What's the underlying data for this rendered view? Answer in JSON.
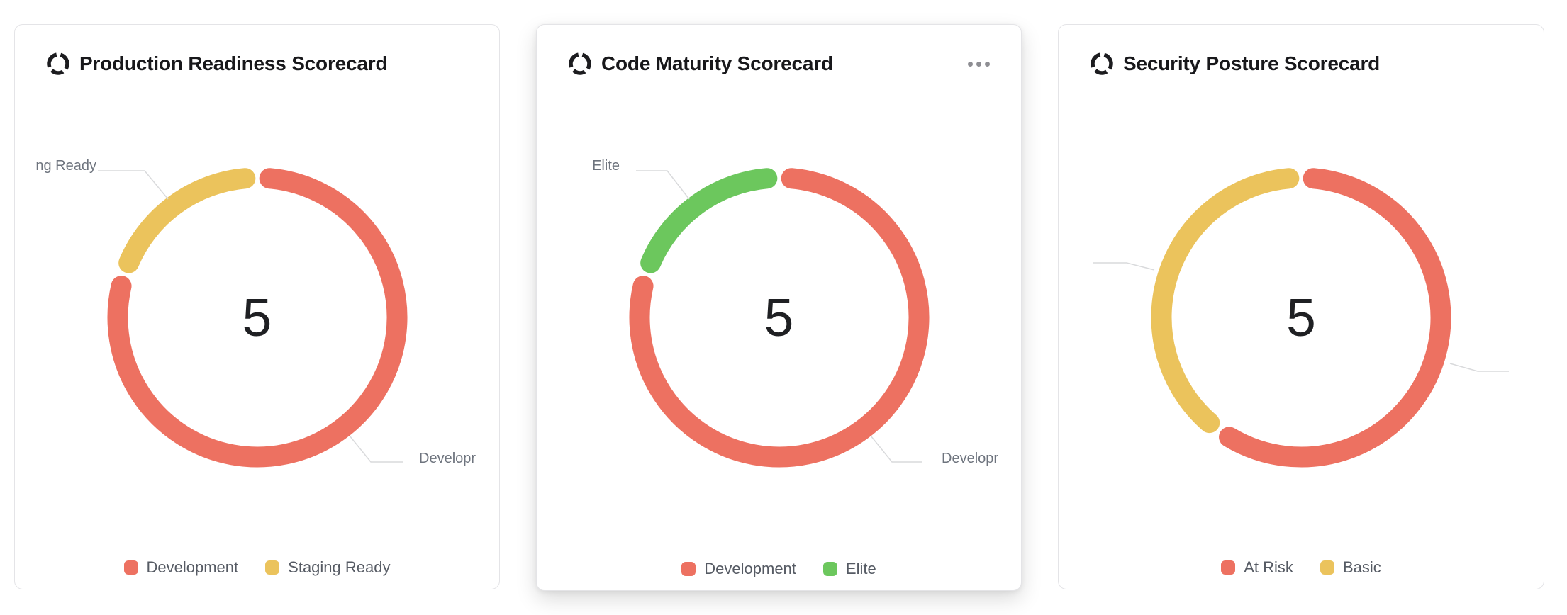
{
  "cards": [
    {
      "title": "Production Readiness Scorecard",
      "icon": "donut-chart-icon",
      "center_value": "5",
      "callouts": {
        "top_left": "ng Ready",
        "bottom_right": "Developr"
      },
      "legend": [
        {
          "label": "Development"
        },
        {
          "label": "Staging Ready"
        }
      ]
    },
    {
      "title": "Code Maturity Scorecard",
      "icon": "donut-chart-icon",
      "menu": "more-options-ellipsis",
      "center_value": "5",
      "callouts": {
        "top_left": "Elite",
        "bottom_right": "Developr"
      },
      "legend": [
        {
          "label": "Development"
        },
        {
          "label": "Elite"
        }
      ]
    },
    {
      "title": "Security Posture Scorecard",
      "icon": "donut-chart-icon",
      "center_value": "5",
      "callouts": {},
      "legend": [
        {
          "label": "At Risk"
        },
        {
          "label": "Basic"
        }
      ]
    }
  ],
  "colors": {
    "red": "#ED7161",
    "yellow": "#EBC35C",
    "green": "#6CC75D",
    "connector": "#D9DADC",
    "title": "#18181B",
    "callout_text": "#6E747E",
    "legend_text": "#565B64",
    "card_border": "#E4E4E7"
  },
  "chart_data": [
    {
      "type": "pie",
      "subtype": "donut",
      "title": "Production Readiness Scorecard",
      "center_label": "5",
      "total": 5,
      "series": [
        {
          "name": "Development",
          "value": 4,
          "color": "#ED7161"
        },
        {
          "name": "Staging Ready",
          "value": 1,
          "color": "#EBC35C"
        }
      ],
      "legend": [
        "Development",
        "Staging Ready"
      ],
      "legend_position": "bottom",
      "start_angle": "top",
      "direction": "clockwise"
    },
    {
      "type": "pie",
      "subtype": "donut",
      "title": "Code Maturity Scorecard",
      "center_label": "5",
      "total": 5,
      "series": [
        {
          "name": "Development",
          "value": 4,
          "color": "#ED7161"
        },
        {
          "name": "Elite",
          "value": 1,
          "color": "#6CC75D"
        }
      ],
      "legend": [
        "Development",
        "Elite"
      ],
      "legend_position": "bottom",
      "start_angle": "top",
      "direction": "clockwise"
    },
    {
      "type": "pie",
      "subtype": "donut",
      "title": "Security Posture Scorecard",
      "center_label": "5",
      "total": 5,
      "series": [
        {
          "name": "At Risk",
          "value": 3,
          "color": "#ED7161"
        },
        {
          "name": "Basic",
          "value": 2,
          "color": "#EBC35C"
        }
      ],
      "legend": [
        "At Risk",
        "Basic"
      ],
      "legend_position": "bottom",
      "start_angle": "top",
      "direction": "clockwise"
    }
  ]
}
